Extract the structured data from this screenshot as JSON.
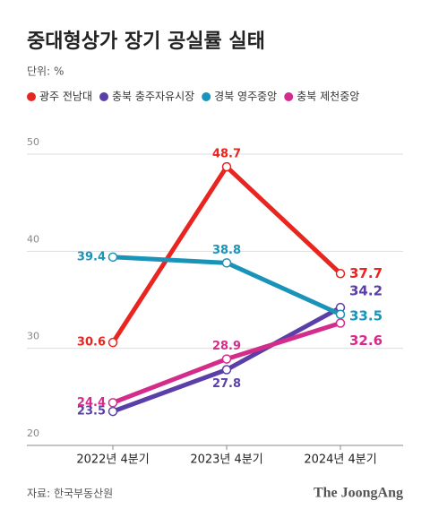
{
  "chart_data": {
    "type": "line",
    "title": "중대형상가 장기 공실률 실태",
    "subtitle": "단위: %",
    "source": "자료: 한국부동산원",
    "brand": "The JoongAng",
    "categories": [
      "2022년 4분기",
      "2023년 4분기",
      "2024년 4분기"
    ],
    "series": [
      {
        "name": "광주 전남대",
        "color": "#e8251f",
        "values": [
          30.6,
          48.7,
          37.7
        ]
      },
      {
        "name": "충북 충주자유시장",
        "color": "#5b3fa8",
        "values": [
          23.5,
          27.8,
          34.2
        ]
      },
      {
        "name": "경북 영주중앙",
        "color": "#1a93b8",
        "values": [
          39.4,
          38.8,
          33.5
        ]
      },
      {
        "name": "충북 제천중앙",
        "color": "#d42c8a",
        "values": [
          24.4,
          28.9,
          32.6
        ]
      }
    ],
    "ylim": [
      20,
      50
    ],
    "yticks": [
      20,
      30,
      40,
      50
    ],
    "grid": true,
    "legend": "top"
  }
}
